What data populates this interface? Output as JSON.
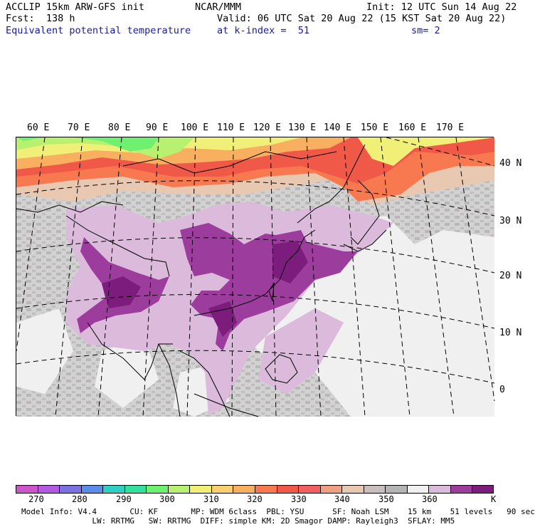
{
  "header": {
    "model_title": "ACCLIP 15km ARW-GFS init",
    "forecast_hour": "Fcst:  138 h",
    "field_name": "Equivalent potential temperature",
    "org": "NCAR/MMM",
    "valid_time": "Valid: 06 UTC Sat 20 Aug 22 (15 KST Sat 20 Aug 22)",
    "level": "at k-index =  51",
    "init_time": "Init: 12 UTC Sun 14 Aug 22",
    "smoothing": "sm= 2"
  },
  "map": {
    "lon_labels": [
      "60 E",
      "70 E",
      "80 E",
      "90 E",
      "100 E",
      "110 E",
      "120 E",
      "130 E",
      "140 E",
      "150 E",
      "160 E",
      "170 E"
    ],
    "lat_labels": [
      "40 N",
      "30 N",
      "20 N",
      "10 N",
      "0"
    ],
    "colors": {
      "c270": "#cc55cc",
      "c275": "#b35ae0",
      "c280": "#7d70e0",
      "c285": "#5a8ee8",
      "c290": "#2ed0c4",
      "c295": "#33e0a0",
      "c300": "#70f070",
      "c305": "#b8f070",
      "c310": "#f0f078",
      "c315": "#f8d070",
      "c320": "#f8b060",
      "c325": "#f87850",
      "c330": "#f05848",
      "c335": "#f06060",
      "c340": "#f0a080",
      "c345": "#e8c8b0",
      "c350": "#c8c0c0",
      "c355": "#b4b4b4",
      "c360": "#f0f0f0",
      "c365": "#dcbadc",
      "c370": "#9c3c9c",
      "c375": "#7c1c7c"
    }
  },
  "colorbar": {
    "unit": "K",
    "labels": [
      "270",
      "280",
      "290",
      "300",
      "310",
      "320",
      "330",
      "340",
      "350",
      "360"
    ],
    "colors": [
      "#cc55cc",
      "#b35ae0",
      "#7d70e0",
      "#5a8ee8",
      "#2ed0c4",
      "#33e0a0",
      "#70f070",
      "#b8f070",
      "#f0f078",
      "#f8d070",
      "#f8b060",
      "#f87850",
      "#f05848",
      "#f06060",
      "#f0a080",
      "#e8c8b0",
      "#c8c0c0",
      "#b4b4b4",
      "#f0f0f0",
      "#dcbadc",
      "#9c3c9c",
      "#7c1c7c"
    ]
  },
  "footer": {
    "line1": "Model Info: V4.4       CU: KF       MP: WDM 6class  PBL: YSU      SF: Noah LSM    15 km    51 levels   90 sec",
    "line2": "               LW: RRTMG   SW: RRTMG  DIFF: simple KM: 2D Smagor DAMP: Rayleigh3  SFLAY: MM5"
  }
}
